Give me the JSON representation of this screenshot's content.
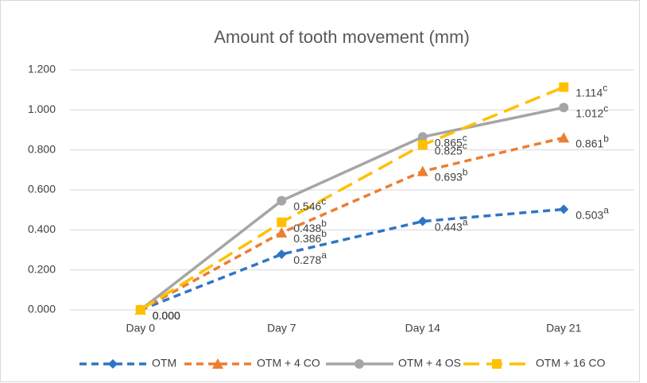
{
  "chart_data": {
    "type": "line",
    "title": "Amount of tooth movement (mm)",
    "categories": [
      "Day 0",
      "Day 7",
      "Day 14",
      "Day 21"
    ],
    "series": [
      {
        "name": "OTM",
        "color": "#2e75c6",
        "marker": "diamond",
        "line_style": "dashed",
        "values": [
          0,
          0.278,
          0.443,
          0.503
        ],
        "value_labels": [
          "0.000",
          "0.278",
          "0.443",
          "0.503"
        ],
        "superscripts": [
          null,
          "a",
          "a",
          "a"
        ]
      },
      {
        "name": "OTM + 4 CO",
        "color": "#ed7d31",
        "marker": "triangle",
        "line_style": "dashed",
        "values": [
          0,
          0.386,
          0.693,
          0.861
        ],
        "value_labels": [
          "0.000",
          "0.386",
          "0.693",
          "0.861"
        ],
        "superscripts": [
          null,
          "b",
          "b",
          "b"
        ]
      },
      {
        "name": "OTM + 4 OS",
        "color": "#a5a5a5",
        "marker": "circle",
        "line_style": "solid",
        "values": [
          0,
          0.546,
          0.865,
          1.012
        ],
        "value_labels": [
          "0.000",
          "0.546",
          "0.865",
          "1.012"
        ],
        "superscripts": [
          null,
          "c",
          "c",
          "c"
        ]
      },
      {
        "name": "OTM + 16 CO",
        "color": "#ffc000",
        "marker": "square",
        "line_style": "long-dash",
        "values": [
          0,
          0.438,
          0.825,
          1.114
        ],
        "value_labels": [
          "0.000",
          "0.438",
          "0.825",
          "1.114"
        ],
        "superscripts": [
          null,
          "b",
          "c",
          "c"
        ]
      }
    ],
    "ylim": [
      0,
      1.2
    ],
    "yticks": [
      {
        "value": 0,
        "label": "0.000"
      },
      {
        "value": 0.2,
        "label": "0.200"
      },
      {
        "value": 0.4,
        "label": "0.400"
      },
      {
        "value": 0.6,
        "label": "0.600"
      },
      {
        "value": 0.8,
        "label": "0.800"
      },
      {
        "value": 1.0,
        "label": "1.000"
      },
      {
        "value": 1.2,
        "label": "1.200"
      }
    ],
    "grid": true,
    "legend": "bottom"
  }
}
